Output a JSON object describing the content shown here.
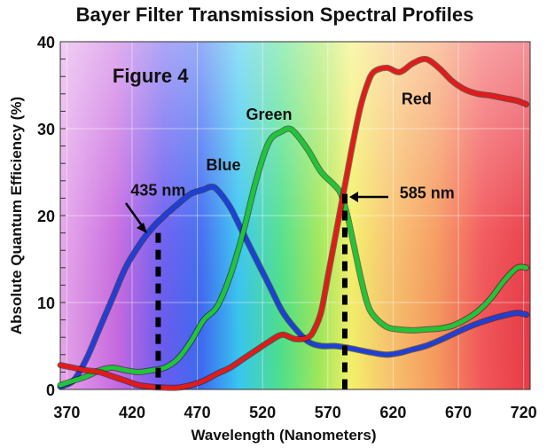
{
  "chart_data": {
    "type": "line",
    "title": "Bayer Filter Transmission Spectral Profiles",
    "xlabel": "Wavelength (Nanometers)",
    "ylabel": "Absolute Quantum Efficiency (%)",
    "xlim": [
      365,
      725
    ],
    "ylim": [
      0,
      40
    ],
    "x_ticks": [
      370,
      420,
      470,
      520,
      570,
      620,
      670,
      720
    ],
    "y_ticks": [
      0,
      10,
      20,
      30,
      40
    ],
    "grid": true,
    "background": "visible spectrum gradient",
    "series": [
      {
        "name": "Blue",
        "color": "#1f3fd6",
        "x": [
          365,
          375,
          385,
          395,
          405,
          415,
          425,
          435,
          445,
          455,
          465,
          475,
          480,
          485,
          495,
          505,
          515,
          525,
          535,
          545,
          555,
          565,
          575,
          585,
          595,
          605,
          615,
          625,
          635,
          645,
          655,
          665,
          675,
          685,
          695,
          705,
          715,
          722
        ],
        "y": [
          0.3,
          1.0,
          3.5,
          7.0,
          10.5,
          14.0,
          16.5,
          18.5,
          20.0,
          21.3,
          22.5,
          23.0,
          23.3,
          23.0,
          21.0,
          18.0,
          15.0,
          12.0,
          9.0,
          7.0,
          5.5,
          5.0,
          5.0,
          4.8,
          4.5,
          4.2,
          4.0,
          4.2,
          4.6,
          5.0,
          5.6,
          6.3,
          7.0,
          7.6,
          8.1,
          8.5,
          8.8,
          8.6
        ]
      },
      {
        "name": "Green",
        "color": "#22c43a",
        "x": [
          365,
          375,
          385,
          395,
          405,
          415,
          425,
          435,
          445,
          455,
          465,
          475,
          485,
          495,
          505,
          515,
          525,
          535,
          540,
          545,
          555,
          565,
          575,
          580,
          585,
          590,
          595,
          600,
          605,
          615,
          625,
          635,
          645,
          655,
          665,
          675,
          685,
          695,
          705,
          715,
          722
        ],
        "y": [
          0.5,
          1.0,
          1.5,
          2.2,
          2.5,
          2.2,
          2.0,
          2.2,
          2.5,
          3.5,
          5.5,
          8.0,
          9.5,
          13.0,
          18.0,
          24.0,
          28.5,
          29.7,
          30.0,
          29.5,
          27.5,
          25.0,
          23.5,
          22.5,
          20.0,
          16.5,
          13.0,
          10.0,
          8.5,
          7.2,
          6.9,
          6.8,
          6.9,
          7.0,
          7.3,
          8.0,
          9.0,
          10.5,
          12.5,
          14.0,
          14.0
        ]
      },
      {
        "name": "Red",
        "color": "#e31a1a",
        "x": [
          365,
          375,
          385,
          395,
          405,
          415,
          425,
          435,
          445,
          455,
          465,
          475,
          485,
          495,
          505,
          515,
          525,
          535,
          545,
          555,
          560,
          565,
          570,
          575,
          580,
          585,
          590,
          595,
          600,
          605,
          615,
          625,
          635,
          645,
          655,
          665,
          675,
          685,
          695,
          705,
          715,
          722
        ],
        "y": [
          2.8,
          2.5,
          2.2,
          2.0,
          1.5,
          1.0,
          0.5,
          0.3,
          0.2,
          0.2,
          0.5,
          1.0,
          1.8,
          2.5,
          3.5,
          4.5,
          5.5,
          6.3,
          5.8,
          6.0,
          7.0,
          9.0,
          13.0,
          17.0,
          21.0,
          25.0,
          29.0,
          32.5,
          35.0,
          36.5,
          37.0,
          36.5,
          37.5,
          38.0,
          37.0,
          35.5,
          34.5,
          34.0,
          33.8,
          33.5,
          33.2,
          32.8
        ]
      }
    ],
    "annotations": [
      {
        "text": "Figure 4",
        "x": 405,
        "y": 35.3
      },
      {
        "text": "435 nm",
        "x": 440,
        "y": 22.3
      },
      {
        "text": "585 nm",
        "x": 625,
        "y": 22.0
      },
      {
        "text": "Blue",
        "x": 490,
        "y": 25.2
      },
      {
        "text": "Green",
        "x": 525,
        "y": 31.0
      },
      {
        "text": "Red",
        "x": 638,
        "y": 32.8
      }
    ],
    "markers": [
      {
        "label": "435 nm",
        "x": 440,
        "y_top": 18.0
      },
      {
        "label": "585 nm",
        "x": 583,
        "y_top": 22.5
      }
    ]
  }
}
